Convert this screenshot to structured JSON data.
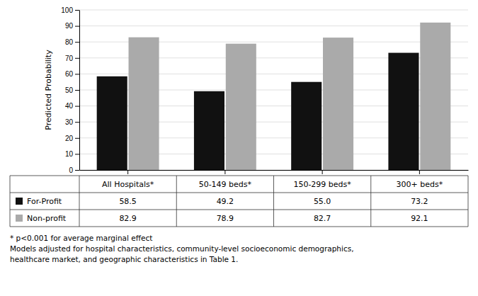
{
  "chart_data": {
    "type": "bar",
    "categories": [
      "All Hospitals*",
      "50-149 beds*",
      "150-299 beds*",
      "300+ beds*"
    ],
    "series": [
      {
        "name": "For-Profit",
        "color": "#111111",
        "values": [
          58.5,
          49.2,
          55.0,
          73.2
        ],
        "value_labels": [
          "58.5",
          "49.2",
          "55.0",
          "73.2"
        ]
      },
      {
        "name": "Non-profit",
        "color": "#aaaaaa",
        "values": [
          82.9,
          78.9,
          82.7,
          92.1
        ],
        "value_labels": [
          "82.9",
          "78.9",
          "82.7",
          "92.1"
        ]
      }
    ],
    "ylabel": "Predicted Probability",
    "ylim": [
      0,
      100
    ],
    "yticks": [
      0,
      10,
      20,
      30,
      40,
      50,
      60,
      70,
      80,
      90,
      100
    ],
    "grid": true,
    "tick_labels": "y",
    "data_labels": true,
    "annotations": [
      "* p<0.001 for average marginal effect",
      "Models adjusted for hospital characteristics, community-level socioeconomic demographics,",
      "healthcare market, and geographic characteristics in Table 1."
    ]
  }
}
